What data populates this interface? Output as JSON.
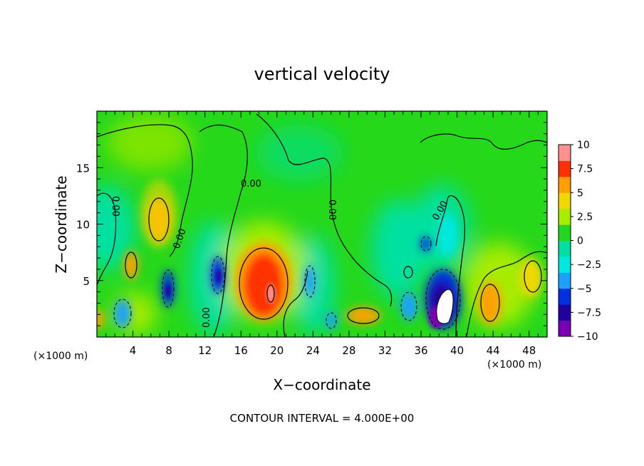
{
  "chart_data": {
    "type": "heatmap",
    "title": "vertical velocity",
    "xlabel": "X−coordinate",
    "ylabel": "Z−coordinate",
    "x_unit_left": "(×1000 m)",
    "x_unit_right": "(×1000 m)",
    "footer": "CONTOUR INTERVAL = 4.000E+00",
    "xlim": [
      0,
      50
    ],
    "ylim": [
      0,
      20
    ],
    "x_ticks": [
      "4",
      "8",
      "12",
      "16",
      "20",
      "24",
      "28",
      "32",
      "36",
      "40",
      "44",
      "48"
    ],
    "y_ticks": [
      "5",
      "10",
      "15"
    ],
    "y_tick_values": [
      5,
      10,
      15
    ],
    "x_tick_values": [
      4,
      8,
      12,
      16,
      20,
      24,
      28,
      32,
      36,
      40,
      44,
      48
    ],
    "contour_labels": [
      "0.00",
      "0.00",
      "0.00",
      "0.00",
      "0.00",
      "0.00"
    ],
    "colorbar": {
      "range": [
        -10,
        10
      ],
      "tick_labels": [
        "10",
        "7.5",
        "5",
        "2.5",
        "0",
        "−2.5",
        "−5",
        "−7.5",
        "−10"
      ],
      "tick_values": [
        10,
        7.5,
        5,
        2.5,
        0,
        -2.5,
        -5,
        -7.5,
        -10
      ],
      "colors": [
        "#7b00b4",
        "#2000a0",
        "#0030e0",
        "#1aa0ff",
        "#00e8e0",
        "#00e0a0",
        "#20d820",
        "#a8ec00",
        "#f0d800",
        "#ffa000",
        "#ff3000",
        "#ff9090"
      ]
    },
    "features": [
      {
        "x": 7,
        "z": 10.5,
        "value": 5
      },
      {
        "x": 3,
        "z": 6.5,
        "value": 4
      },
      {
        "x": 18,
        "z": 4.5,
        "value": 9
      },
      {
        "x": 18.5,
        "z": 3.5,
        "value": 10
      },
      {
        "x": 29.5,
        "z": 1.5,
        "value": 4
      },
      {
        "x": 43.5,
        "z": 3,
        "value": 5
      },
      {
        "x": 47,
        "z": 4,
        "value": 3
      },
      {
        "x": 1.5,
        "z": 2,
        "value": -5
      },
      {
        "x": 7.5,
        "z": 4.5,
        "value": -6
      },
      {
        "x": 13.5,
        "z": 5.5,
        "value": -5
      },
      {
        "x": 23.5,
        "z": 4.5,
        "value": -5
      },
      {
        "x": 26,
        "z": 1.5,
        "value": -4
      },
      {
        "x": 34,
        "z": 2.5,
        "value": -5
      },
      {
        "x": 38,
        "z": 3,
        "value": -10
      },
      {
        "x": 37,
        "z": 5.5,
        "value": -7
      },
      {
        "x": 36,
        "z": 8,
        "value": -5
      },
      {
        "x": 3,
        "z": 12.5,
        "value": -2
      },
      {
        "x": 10,
        "z": 15,
        "value": 1.5
      },
      {
        "x": 22,
        "z": 17,
        "value": -1
      },
      {
        "x": 35,
        "z": 15,
        "value": 1.5
      }
    ]
  }
}
